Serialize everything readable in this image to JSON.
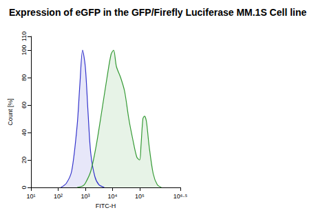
{
  "chart_data": {
    "type": "line",
    "title": "Expression of eGFP in the GFP/Firefly Luciferase MM.1S Cell line",
    "x_label": "FITC-H",
    "y_label": "Count [%]",
    "log": "x",
    "grid": false,
    "xlim": [
      10,
      3162277.66
    ],
    "xticks": [
      {
        "value": 10,
        "label": "10¹"
      },
      {
        "value": 100,
        "label": "10²"
      },
      {
        "value": 1000,
        "label": "10³"
      },
      {
        "value": 10000,
        "label": "10⁴"
      },
      {
        "value": 100000,
        "label": "10⁵"
      },
      {
        "value": 3162277.66,
        "label": "10⁶·⁵"
      }
    ],
    "ylim": [
      0,
      110
    ],
    "yticks": [
      0,
      20,
      40,
      60,
      80,
      100,
      110
    ],
    "series": [
      {
        "color": "#3333cc",
        "x": [
          126,
          200,
          316,
          500,
          631,
          794,
          1000,
          1259,
          1585,
          2239,
          3162,
          5012
        ],
        "values": [
          0,
          3,
          12,
          45,
          75,
          100,
          88,
          55,
          25,
          8,
          2,
          0
        ]
      },
      {
        "color": "#339933",
        "x": [
          500,
          790,
          1000,
          1600,
          2500,
          4000,
          6300,
          8900,
          11000,
          14000,
          20000,
          28000,
          40000,
          56000,
          79000,
          100000,
          112000,
          132000,
          151000,
          178000,
          224000,
          316000,
          447000,
          631000
        ],
        "values": [
          0,
          1,
          3,
          12,
          30,
          55,
          80,
          97,
          100,
          88,
          80,
          70,
          50,
          35,
          22,
          20,
          30,
          50,
          52,
          48,
          30,
          10,
          2,
          0
        ]
      }
    ]
  }
}
